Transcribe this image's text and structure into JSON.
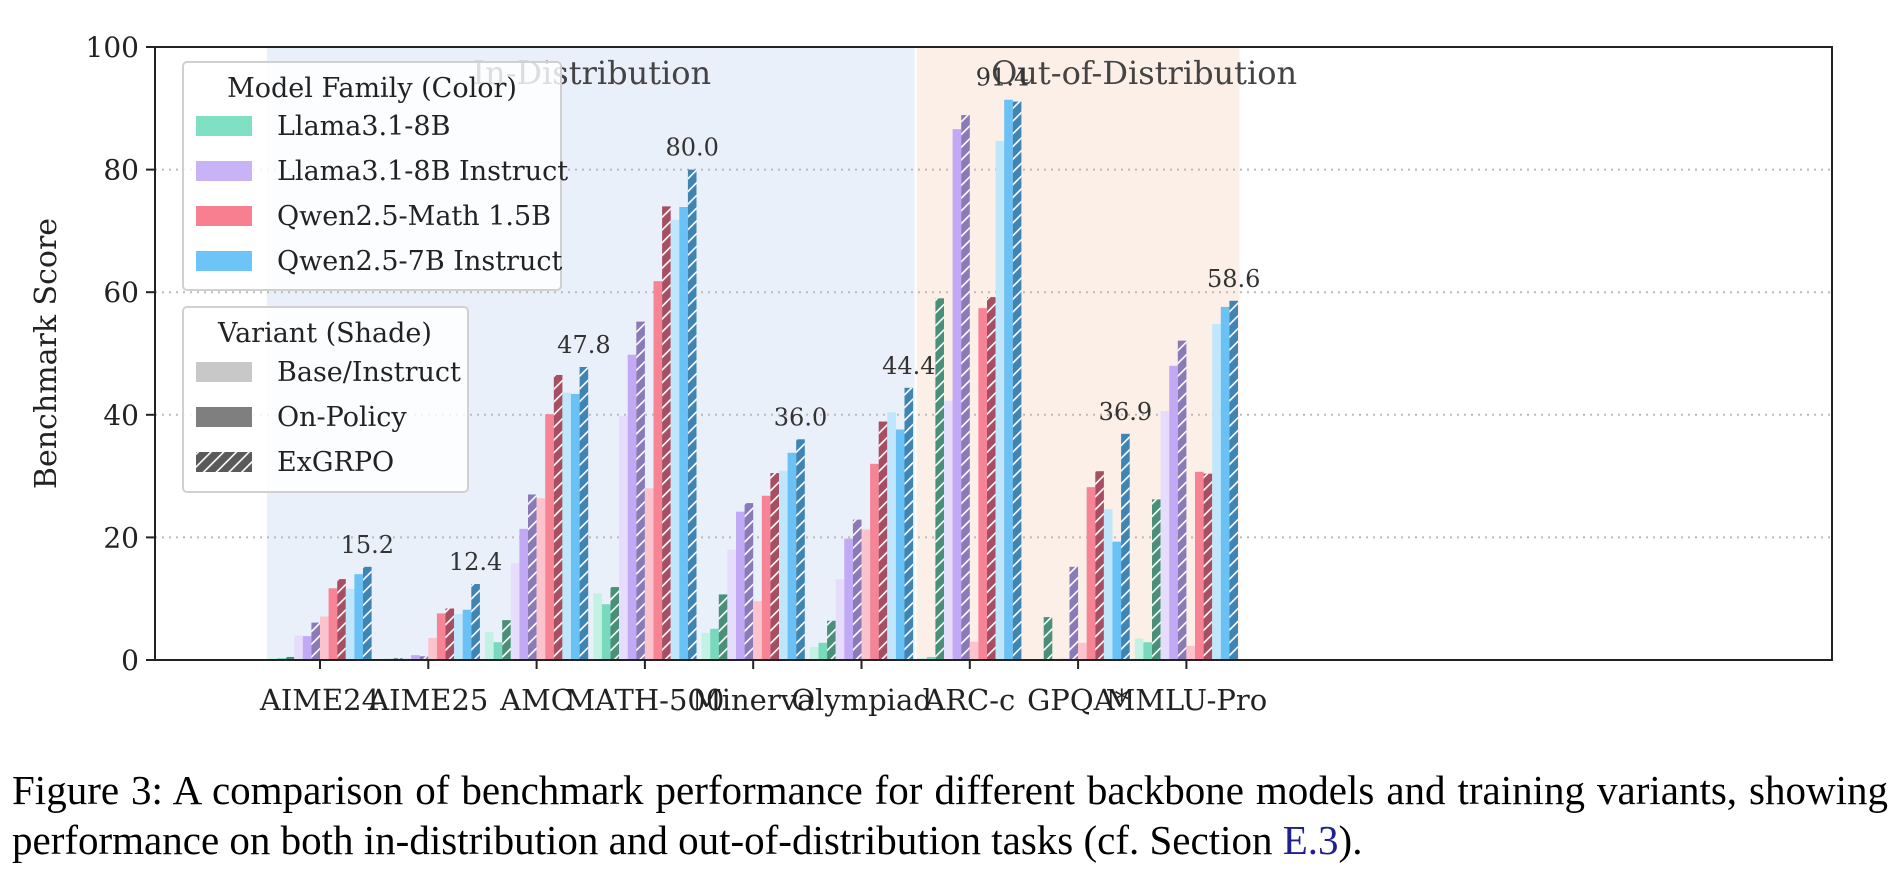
{
  "chart_data": {
    "type": "bar",
    "ylabel": "Benchmark Score",
    "xlabel": "",
    "ylim": [
      0,
      100
    ],
    "yticks": [
      0,
      20,
      40,
      60,
      80,
      100
    ],
    "grid": "y-dotted",
    "categories": [
      "AIME24",
      "AIME25",
      "AMC",
      "MATH-500",
      "Minerva",
      "Olympiad",
      "ARC-c",
      "GPQA*",
      "MMLU-Pro"
    ],
    "regions": [
      {
        "label": "In-Distribution",
        "from": "AIME24",
        "to": "Olympiad",
        "color": "#eaf0fa"
      },
      {
        "label": "Out-of-Distribution",
        "from": "ARC-c",
        "to": "MMLU-Pro",
        "color": "#fcefe7"
      }
    ],
    "max_labels": [
      15.2,
      12.4,
      47.8,
      80.0,
      36.0,
      44.4,
      91.4,
      36.9,
      58.6
    ],
    "max_label_text": [
      "15.2",
      "12.4",
      "47.8",
      "80.0",
      "36.0",
      "44.4",
      "91.4",
      "36.9",
      "58.6"
    ],
    "legend_family": {
      "title": "Model Family (Color)",
      "entries": [
        {
          "label": "Llama3.1-8B",
          "color": "#7fe0c4"
        },
        {
          "label": "Llama3.1-8B Instruct",
          "color": "#c9b3f7"
        },
        {
          "label": "Qwen2.5-Math 1.5B",
          "color": "#f77f90"
        },
        {
          "label": "Qwen2.5-7B Instruct",
          "color": "#6cc4f7"
        }
      ]
    },
    "legend_variant": {
      "title": "Variant (Shade)",
      "entries": [
        {
          "label": "Base/Instruct",
          "style": "light"
        },
        {
          "label": "On-Policy",
          "style": "medium"
        },
        {
          "label": "ExGRPO",
          "style": "hatched"
        }
      ]
    },
    "series": [
      {
        "family": "Llama3.1-8B",
        "variant": "Base/Instruct",
        "colors": [
          "#c3f2e5"
        ],
        "values": [
          0.3,
          0.2,
          4.6,
          10.9,
          4.4,
          2.1,
          0.3,
          0.1,
          3.5
        ]
      },
      {
        "family": "Llama3.1-8B",
        "variant": "On-Policy",
        "colors": [
          "#79d9bc"
        ],
        "values": [
          0.3,
          0.2,
          2.9,
          9.1,
          5.1,
          2.8,
          0.5,
          0.1,
          2.9
        ]
      },
      {
        "family": "Llama3.1-8B",
        "variant": "ExGRPO",
        "colors": [
          "#4a8f78"
        ],
        "values": [
          0.5,
          0.3,
          6.5,
          11.9,
          10.7,
          6.4,
          59.0,
          7.0,
          26.2
        ]
      },
      {
        "family": "Llama3.1-8B Instruct",
        "variant": "Base/Instruct",
        "colors": [
          "#e6dcfb"
        ],
        "values": [
          4.0,
          0.3,
          15.8,
          39.8,
          18.0,
          13.2,
          42.3,
          0.2,
          40.6
        ]
      },
      {
        "family": "Llama3.1-8B Instruct",
        "variant": "On-Policy",
        "colors": [
          "#c2a9f6"
        ],
        "values": [
          3.9,
          0.8,
          21.4,
          49.8,
          24.2,
          19.8,
          86.6,
          0.2,
          48.0
        ]
      },
      {
        "family": "Llama3.1-8B Instruct",
        "variant": "ExGRPO",
        "colors": [
          "#8a7ab8"
        ],
        "values": [
          6.1,
          0.6,
          27.0,
          55.2,
          25.6,
          22.9,
          88.9,
          15.2,
          52.1
        ]
      },
      {
        "family": "Qwen2.5-Math 1.5B",
        "variant": "Base/Instruct",
        "colors": [
          "#fbc3cc"
        ],
        "values": [
          7.1,
          3.6,
          26.4,
          28.0,
          9.6,
          21.3,
          3.0,
          2.8,
          2.3
        ]
      },
      {
        "family": "Qwen2.5-Math 1.5B",
        "variant": "On-Policy",
        "colors": [
          "#f78495"
        ],
        "values": [
          11.7,
          7.6,
          40.1,
          61.8,
          26.8,
          32.0,
          57.4,
          28.2,
          30.7
        ]
      },
      {
        "family": "Qwen2.5-Math 1.5B",
        "variant": "ExGRPO",
        "colors": [
          "#a84e62"
        ],
        "values": [
          13.2,
          8.4,
          46.5,
          74.0,
          30.5,
          38.9,
          59.2,
          30.8,
          30.4
        ]
      },
      {
        "family": "Qwen2.5-7B Instruct",
        "variant": "Base/Instruct",
        "colors": [
          "#bfe6fb"
        ],
        "values": [
          11.6,
          7.5,
          43.6,
          71.8,
          30.9,
          40.4,
          84.7,
          24.6,
          54.8
        ]
      },
      {
        "family": "Qwen2.5-7B Instruct",
        "variant": "On-Policy",
        "colors": [
          "#69c1f5"
        ],
        "values": [
          14.0,
          8.2,
          43.4,
          73.9,
          33.8,
          37.6,
          91.4,
          19.3,
          57.6
        ]
      },
      {
        "family": "Qwen2.5-7B Instruct",
        "variant": "ExGRPO",
        "colors": [
          "#3f84b3"
        ],
        "values": [
          15.2,
          12.4,
          47.8,
          80.0,
          36.0,
          44.4,
          91.1,
          36.9,
          58.6
        ]
      }
    ]
  },
  "caption": {
    "prefix": "Figure 3:",
    "text": "A comparison of benchmark performance for different backbone models and training variants, showing performance on both in-distribution and out-of-distribution tasks (cf. Section",
    "ref": "E.3",
    "suffix": ")."
  }
}
